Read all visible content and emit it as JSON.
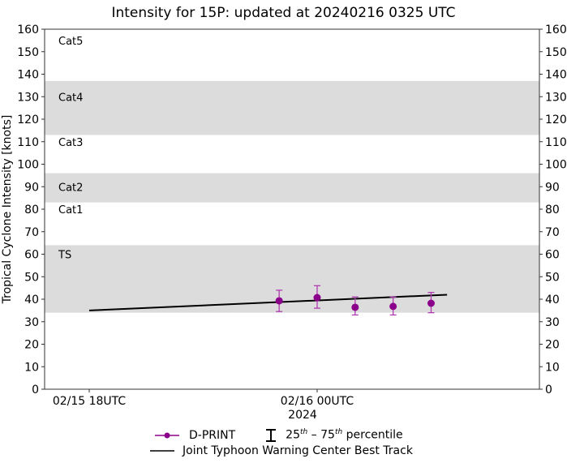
{
  "title": "Intensity for 15P: updated at 20240216 0325 UTC",
  "colors": {
    "dprint": "#8B008B",
    "dprint_err": "#B03CB0",
    "best_track": "#000000",
    "band": "#DCDCDC",
    "axis": "#333333"
  },
  "legend": {
    "dprint": "D-PRINT",
    "pct_prefix": "25",
    "pct_sup1": "th",
    "pct_mid": " – 75",
    "pct_sup2": "th",
    "pct_suffix": " percentile",
    "best_track": "Joint Typhoon Warning Center Best Track"
  },
  "chart_data": {
    "type": "line",
    "title": "Intensity for 15P: updated at 20240216 0325 UTC",
    "xlabel": "2024",
    "ylabel": "Tropical Cyclone Intensity [knots]",
    "ylim": [
      0,
      160
    ],
    "yticks": [
      0,
      10,
      20,
      30,
      40,
      50,
      60,
      70,
      80,
      90,
      100,
      110,
      120,
      130,
      140,
      150,
      160
    ],
    "xticks": [
      {
        "label": "02/15 18UTC",
        "hours": 0
      },
      {
        "label": "02/16 00UTC",
        "hours": 6
      }
    ],
    "xlim_hours": [
      -1.2,
      11.8
    ],
    "grid": false,
    "category_bands": [
      {
        "label": "TS",
        "lo": 34,
        "hi": 64,
        "shaded": true
      },
      {
        "label": "Cat1",
        "lo": 64,
        "hi": 83,
        "shaded": false
      },
      {
        "label": "Cat2",
        "lo": 83,
        "hi": 96,
        "shaded": true
      },
      {
        "label": "Cat3",
        "lo": 96,
        "hi": 113,
        "shaded": false
      },
      {
        "label": "Cat4",
        "lo": 113,
        "hi": 137,
        "shaded": true
      },
      {
        "label": "Cat5",
        "lo": 137,
        "hi": 160,
        "shaded": false
      }
    ],
    "category_labels": [
      {
        "label": "Cat5",
        "y": 155
      },
      {
        "label": "Cat4",
        "y": 130
      },
      {
        "label": "Cat3",
        "y": 110
      },
      {
        "label": "Cat2",
        "y": 90
      },
      {
        "label": "Cat1",
        "y": 80
      },
      {
        "label": "TS",
        "y": 60
      }
    ],
    "series": [
      {
        "name": "D-PRINT",
        "type": "errorbar",
        "hours": [
          5,
          6,
          7,
          8,
          9
        ],
        "values": [
          39.3,
          40.7,
          36.4,
          36.8,
          38.2
        ],
        "p25": [
          34.5,
          36.0,
          33.0,
          33.0,
          34.0
        ],
        "p75": [
          44.0,
          46.0,
          41.0,
          41.0,
          43.0
        ]
      },
      {
        "name": "Joint Typhoon Warning Center Best Track",
        "type": "line",
        "hours": [
          0,
          9.42
        ],
        "values": [
          35,
          42
        ]
      }
    ],
    "legend_position": "below"
  }
}
